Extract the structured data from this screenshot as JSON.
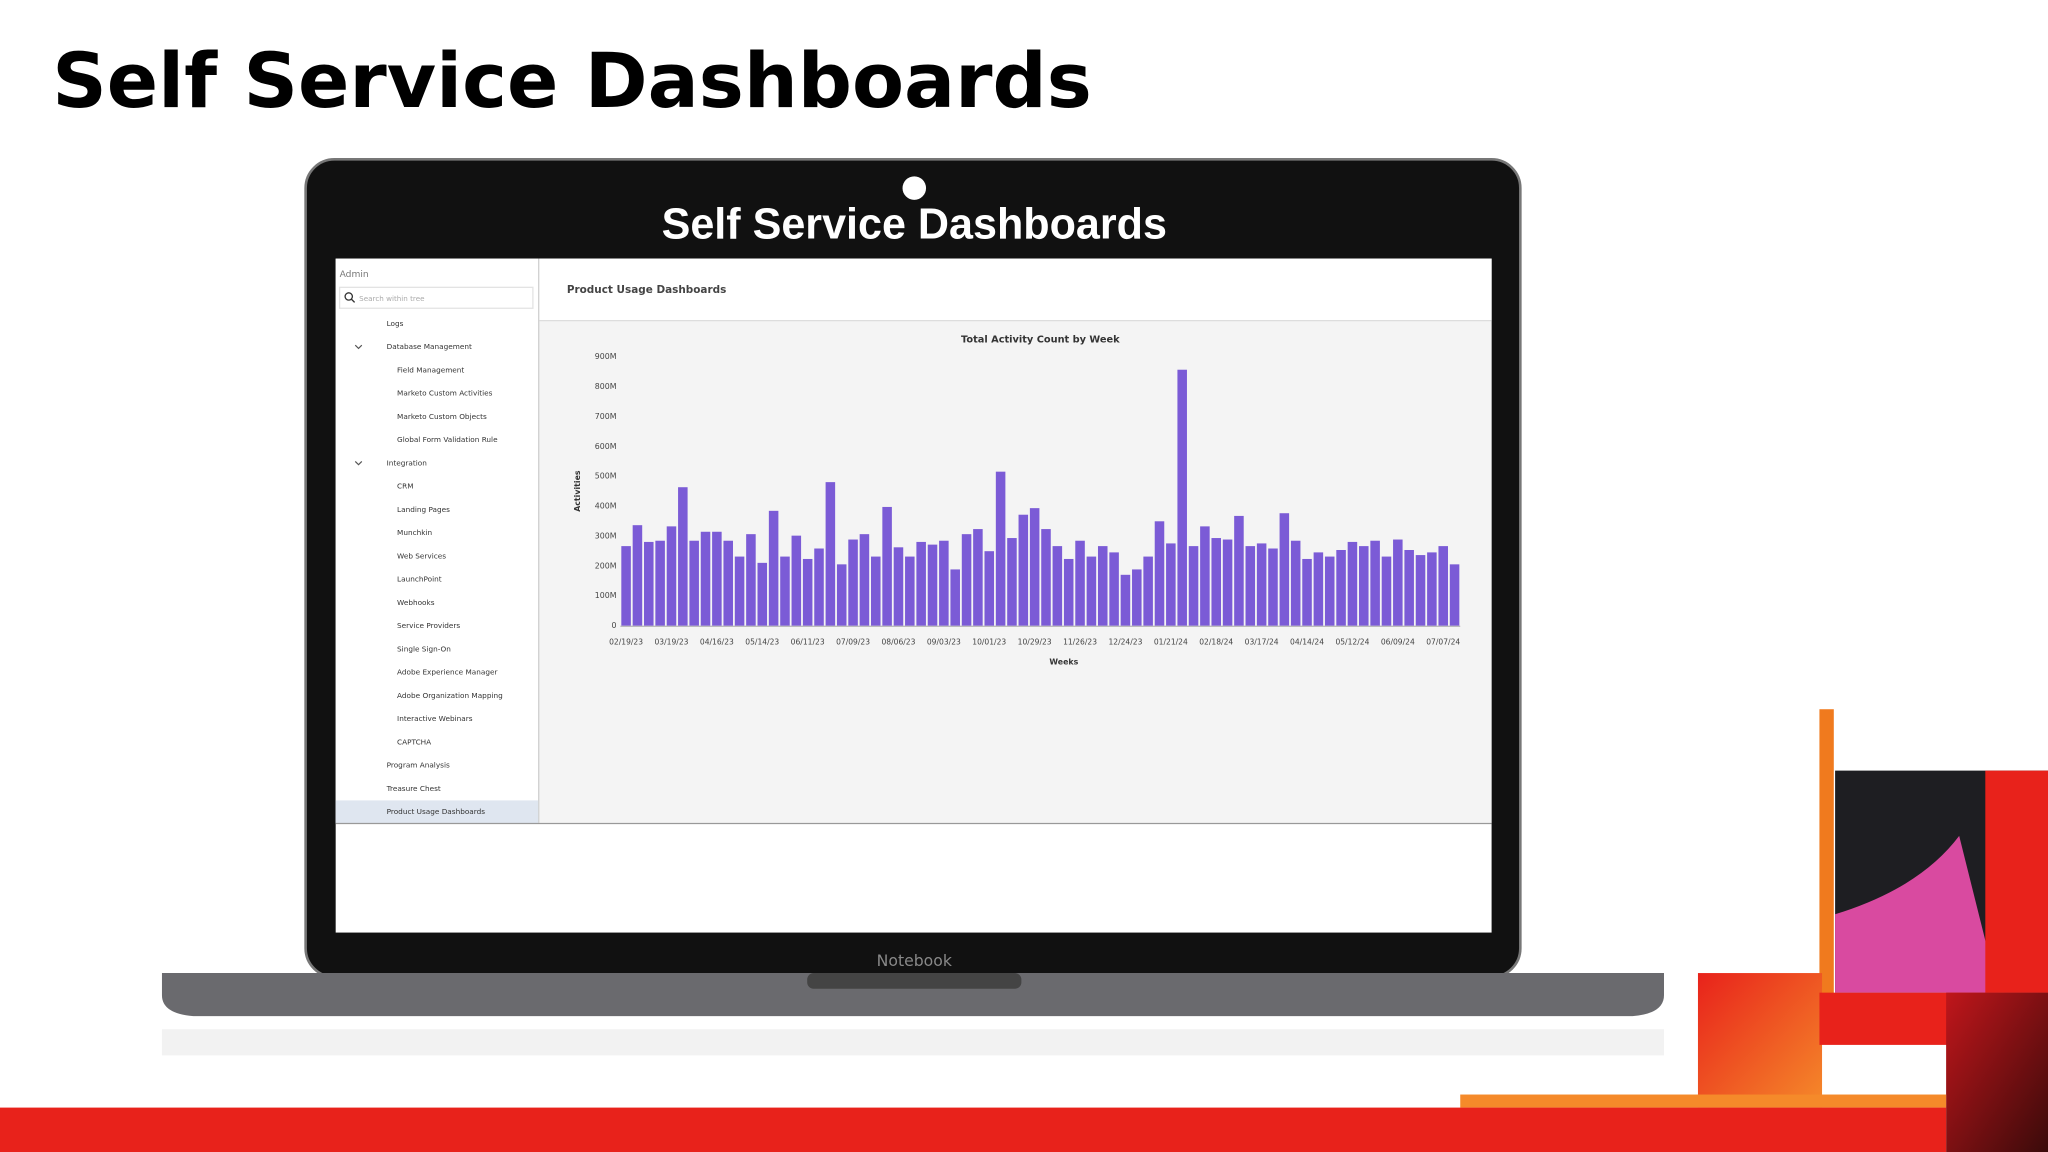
{
  "slide_title": "Self Service Dashboards",
  "screen_title": "Self Service Dashboards",
  "laptop_brand": "Notebook",
  "sidebar": {
    "heading": "Admin",
    "search_placeholder": "Search within tree",
    "items": [
      {
        "label": "Logs"
      },
      {
        "label": "Database Management",
        "children": [
          {
            "label": "Field Management"
          },
          {
            "label": "Marketo Custom Activities"
          },
          {
            "label": "Marketo Custom Objects"
          },
          {
            "label": "Global Form Validation Rule"
          }
        ]
      },
      {
        "label": "Integration",
        "children": [
          {
            "label": "CRM"
          },
          {
            "label": "Landing Pages"
          },
          {
            "label": "Munchkin"
          },
          {
            "label": "Web Services"
          },
          {
            "label": "LaunchPoint"
          },
          {
            "label": "Webhooks"
          },
          {
            "label": "Service Providers"
          },
          {
            "label": "Single Sign-On"
          },
          {
            "label": "Adobe Experience Manager"
          },
          {
            "label": "Adobe Organization Mapping"
          },
          {
            "label": "Interactive Webinars"
          },
          {
            "label": "CAPTCHA"
          }
        ]
      },
      {
        "label": "Program Analysis"
      },
      {
        "label": "Treasure Chest"
      },
      {
        "label": "Product Usage Dashboards"
      }
    ]
  },
  "panel_title": "Product Usage Dashboards",
  "chart_data": {
    "type": "bar",
    "title": "Total Activity Count by Week",
    "x_label": "Weeks",
    "y_label": "Activities",
    "color": "#7b5bd6",
    "categories": [
      "02/19/23",
      null,
      null,
      null,
      "03/19/23",
      null,
      null,
      null,
      "04/16/23",
      null,
      null,
      null,
      "05/14/23",
      null,
      null,
      null,
      "06/11/23",
      null,
      null,
      null,
      "07/09/23",
      null,
      null,
      null,
      "08/06/23",
      null,
      null,
      null,
      "09/03/23",
      null,
      null,
      null,
      "10/01/23",
      null,
      null,
      null,
      "10/29/23",
      null,
      null,
      null,
      "11/26/23",
      null,
      null,
      null,
      "12/24/23",
      null,
      null,
      null,
      "01/21/24",
      null,
      null,
      null,
      "02/18/24",
      null,
      null,
      null,
      "03/17/24",
      null,
      null,
      null,
      "04/14/24",
      null,
      null,
      null,
      "05/12/24",
      null,
      null,
      null,
      "06/09/24",
      null,
      null,
      null,
      "07/07/24",
      null
    ],
    "values": [
      266000000,
      336000000,
      280000000,
      284000000,
      332000000,
      463000000,
      284000000,
      314000000,
      314000000,
      284000000,
      231000000,
      306000000,
      210000000,
      384000000,
      231000000,
      301000000,
      223000000,
      258000000,
      480000000,
      205000000,
      288000000,
      306000000,
      231000000,
      397000000,
      262000000,
      231000000,
      280000000,
      271000000,
      284000000,
      188000000,
      306000000,
      323000000,
      249000000,
      515000000,
      293000000,
      371000000,
      393000000,
      323000000,
      266000000,
      223000000,
      284000000,
      231000000,
      266000000,
      245000000,
      170000000,
      188000000,
      231000000,
      349000000,
      275000000,
      856000000,
      266000000,
      332000000,
      293000000,
      288000000,
      367000000,
      266000000,
      275000000,
      258000000,
      376000000,
      284000000,
      223000000,
      245000000,
      231000000,
      253000000,
      280000000,
      266000000,
      284000000,
      231000000,
      288000000,
      253000000,
      236000000,
      245000000,
      266000000,
      205000000
    ],
    "ylim": [
      0,
      900000000
    ],
    "yticks": [
      0,
      {
        "value": 100000000,
        "label": "100M"
      },
      {
        "value": 200000000,
        "label": "200M"
      },
      {
        "value": 300000000,
        "label": "300M"
      },
      {
        "value": 400000000,
        "label": "400M"
      },
      {
        "value": 500000000,
        "label": "500M"
      },
      {
        "value": 600000000,
        "label": "600M"
      },
      {
        "value": 700000000,
        "label": "700M"
      },
      {
        "value": 800000000,
        "label": "800M"
      },
      {
        "value": 900000000,
        "label": "900M"
      }
    ],
    "grid": false
  }
}
